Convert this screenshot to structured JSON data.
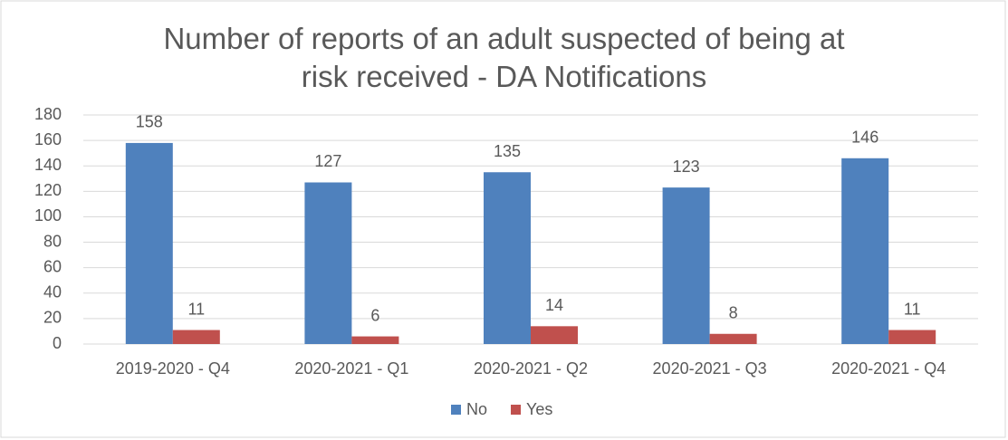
{
  "chart_data": {
    "type": "bar",
    "title": "Number of reports of an adult suspected of being at risk received - DA Notifications",
    "categories": [
      "2019-2020 - Q4",
      "2020-2021 - Q1",
      "2020-2021 - Q2",
      "2020-2021 - Q3",
      "2020-2021 - Q4"
    ],
    "series": [
      {
        "name": "No",
        "color": "#4f81bd",
        "values": [
          158,
          127,
          135,
          123,
          146
        ]
      },
      {
        "name": "Yes",
        "color": "#c0504d",
        "values": [
          11,
          6,
          14,
          8,
          11
        ]
      }
    ],
    "ylim": [
      0,
      180
    ],
    "yticks": [
      0,
      20,
      40,
      60,
      80,
      100,
      120,
      140,
      160,
      180
    ],
    "grid": true,
    "legend": "bottom"
  }
}
